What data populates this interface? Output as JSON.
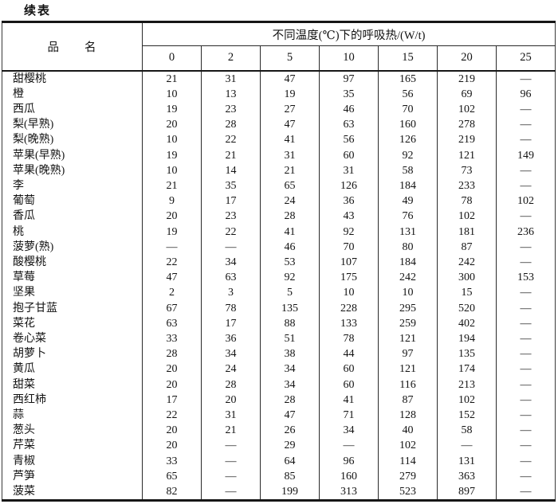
{
  "page_title": "续表",
  "table": {
    "header": {
      "name_col": "品　　名",
      "group_label": "不同温度(℃)下的呼吸热/(W/t)",
      "temps": [
        "0",
        "2",
        "5",
        "10",
        "15",
        "20",
        "25"
      ]
    },
    "empty_mark": "—",
    "rows": [
      {
        "name": "甜樱桃",
        "values": [
          "21",
          "31",
          "47",
          "97",
          "165",
          "219",
          "—"
        ]
      },
      {
        "name": "橙",
        "values": [
          "10",
          "13",
          "19",
          "35",
          "56",
          "69",
          "96"
        ]
      },
      {
        "name": "西瓜",
        "values": [
          "19",
          "23",
          "27",
          "46",
          "70",
          "102",
          "—"
        ]
      },
      {
        "name": "梨(早熟)",
        "values": [
          "20",
          "28",
          "47",
          "63",
          "160",
          "278",
          "—"
        ]
      },
      {
        "name": "梨(晚熟)",
        "values": [
          "10",
          "22",
          "41",
          "56",
          "126",
          "219",
          "—"
        ]
      },
      {
        "name": "苹果(早熟)",
        "values": [
          "19",
          "21",
          "31",
          "60",
          "92",
          "121",
          "149"
        ]
      },
      {
        "name": "苹果(晚熟)",
        "values": [
          "10",
          "14",
          "21",
          "31",
          "58",
          "73",
          "—"
        ]
      },
      {
        "name": "李",
        "values": [
          "21",
          "35",
          "65",
          "126",
          "184",
          "233",
          "—"
        ]
      },
      {
        "name": "葡萄",
        "values": [
          "9",
          "17",
          "24",
          "36",
          "49",
          "78",
          "102"
        ]
      },
      {
        "name": "香瓜",
        "values": [
          "20",
          "23",
          "28",
          "43",
          "76",
          "102",
          "—"
        ]
      },
      {
        "name": "桃",
        "values": [
          "19",
          "22",
          "41",
          "92",
          "131",
          "181",
          "236"
        ]
      },
      {
        "name": "菠萝(熟)",
        "values": [
          "—",
          "—",
          "46",
          "70",
          "80",
          "87",
          "—"
        ]
      },
      {
        "name": "酸樱桃",
        "values": [
          "22",
          "34",
          "53",
          "107",
          "184",
          "242",
          "—"
        ]
      },
      {
        "name": "草莓",
        "values": [
          "47",
          "63",
          "92",
          "175",
          "242",
          "300",
          "153"
        ]
      },
      {
        "name": "坚果",
        "values": [
          "2",
          "3",
          "5",
          "10",
          "10",
          "15",
          "—"
        ]
      },
      {
        "name": "抱子甘蓝",
        "values": [
          "67",
          "78",
          "135",
          "228",
          "295",
          "520",
          "—"
        ]
      },
      {
        "name": "菜花",
        "values": [
          "63",
          "17",
          "88",
          "133",
          "259",
          "402",
          "—"
        ]
      },
      {
        "name": "卷心菜",
        "values": [
          "33",
          "36",
          "51",
          "78",
          "121",
          "194",
          "—"
        ]
      },
      {
        "name": "胡萝卜",
        "values": [
          "28",
          "34",
          "38",
          "44",
          "97",
          "135",
          "—"
        ]
      },
      {
        "name": "黄瓜",
        "values": [
          "20",
          "24",
          "34",
          "60",
          "121",
          "174",
          "—"
        ]
      },
      {
        "name": "甜菜",
        "values": [
          "20",
          "28",
          "34",
          "60",
          "116",
          "213",
          "—"
        ]
      },
      {
        "name": "西红柿",
        "values": [
          "17",
          "20",
          "28",
          "41",
          "87",
          "102",
          "—"
        ]
      },
      {
        "name": "蒜",
        "values": [
          "22",
          "31",
          "47",
          "71",
          "128",
          "152",
          "—"
        ]
      },
      {
        "name": "葱头",
        "values": [
          "20",
          "21",
          "26",
          "34",
          "40",
          "58",
          "—"
        ]
      },
      {
        "name": "芹菜",
        "values": [
          "20",
          "—",
          "29",
          "—",
          "102",
          "—",
          "—"
        ]
      },
      {
        "name": "青椒",
        "values": [
          "33",
          "—",
          "64",
          "96",
          "114",
          "131",
          "—"
        ]
      },
      {
        "name": "芦笋",
        "values": [
          "65",
          "—",
          "85",
          "160",
          "279",
          "363",
          "—"
        ]
      },
      {
        "name": "菠菜",
        "values": [
          "82",
          "—",
          "199",
          "313",
          "523",
          "897",
          "—"
        ]
      }
    ]
  }
}
